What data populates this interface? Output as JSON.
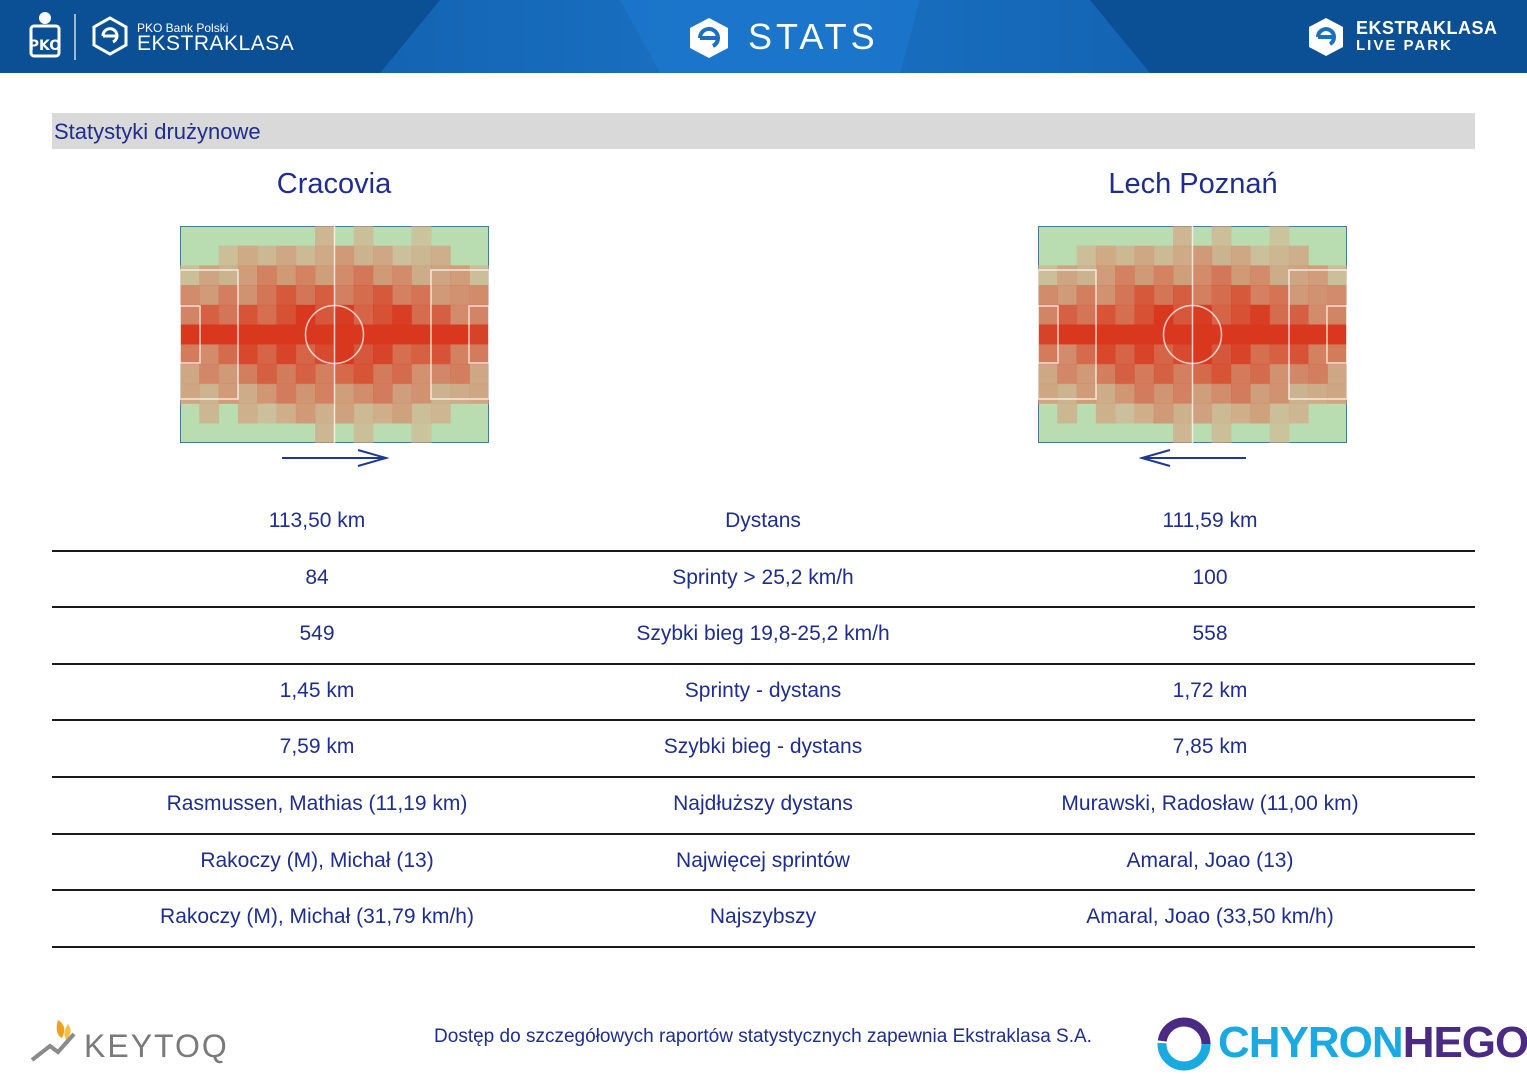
{
  "header": {
    "sponsor_small": "PKO Bank Polski",
    "league_name": "EKSTRAKLASA",
    "page_title": "STATS",
    "brand_line1": "EKSTRAKLASA",
    "brand_line2": "LIVE PARK",
    "colors": {
      "bar": "#1a6fc0",
      "bar_dark": "#0a57a3"
    }
  },
  "section": {
    "title": "Statystyki drużynowe"
  },
  "teams": {
    "home": {
      "name": "Cracovia",
      "direction": "right"
    },
    "away": {
      "name": "Lech Poznań",
      "direction": "left"
    }
  },
  "stats": [
    {
      "home": "113,50 km",
      "label": "Dystans",
      "away": "111,59 km"
    },
    {
      "home": "84",
      "label": "Sprinty > 25,2 km/h",
      "away": "100"
    },
    {
      "home": "549",
      "label": "Szybki bieg 19,8-25,2 km/h",
      "away": "558"
    },
    {
      "home": "1,45 km",
      "label": "Sprinty - dystans",
      "away": "1,72 km"
    },
    {
      "home": "7,59 km",
      "label": "Szybki bieg - dystans",
      "away": "7,85 km"
    },
    {
      "home": "Rasmussen, Mathias (11,19 km)",
      "label": "Najdłuższy dystans",
      "away": "Murawski, Radosław (11,00 km)"
    },
    {
      "home": "Rakoczy (M), Michał (13)",
      "label": "Najwięcej sprintów",
      "away": "Amaral, Joao (13)"
    },
    {
      "home": "Rakoczy (M), Michał (31,79 km/h)",
      "label": "Najszybszy",
      "away": "Amaral, Joao (33,50 km/h)"
    }
  ],
  "footer": {
    "left_brand": "KEYTOQ",
    "note": "Dostęp do szczegółowych raportów statystycznych zapewnia Ekstraklasa S.A.",
    "right_brand_a": "CHYRON",
    "right_brand_b": "HEGO"
  },
  "text_color": "#1f2d8c",
  "heatmap_colors": {
    "pitch": "#b9dcb0",
    "hot": "#d9381e"
  }
}
